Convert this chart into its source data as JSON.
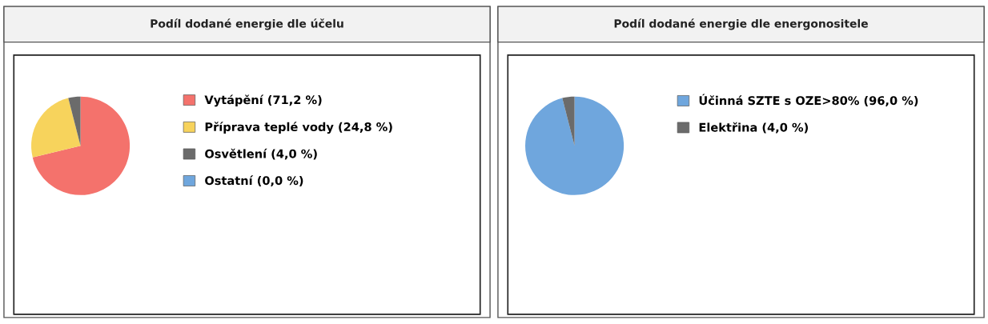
{
  "chart_data": [
    {
      "type": "pie",
      "title": "Podíl dodané energie dle účelu",
      "categories": [
        "Vytápění (71,2 %)",
        "Příprava teplé vody (24,8 %)",
        "Osvětlení (4,0 %)",
        "Ostatní (0,0 %)"
      ],
      "values": [
        71.2,
        24.8,
        4.0,
        0.0
      ],
      "colors": [
        "#f4726c",
        "#f7d35c",
        "#6b6b6b",
        "#6fa6dd"
      ],
      "legend": "right"
    },
    {
      "type": "pie",
      "title": "Podíl dodané energie dle energonositele",
      "categories": [
        "Účinná SZTE s OZE>80% (96,0 %)",
        "Elektřina (4,0 %)"
      ],
      "values": [
        96.0,
        4.0
      ],
      "colors": [
        "#6fa6dd",
        "#6b6b6b"
      ],
      "legend": "right"
    }
  ]
}
